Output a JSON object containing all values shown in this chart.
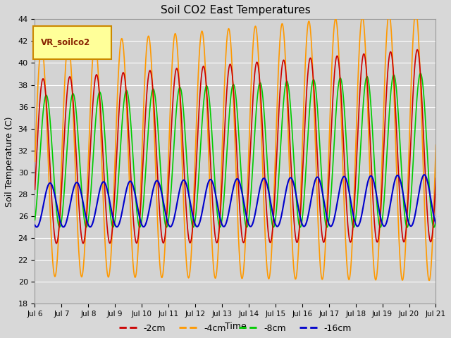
{
  "title": "Soil CO2 East Temperatures",
  "ylabel": "Soil Temperature (C)",
  "xlabel": "Time",
  "ylim": [
    18,
    44
  ],
  "xlim_days": [
    6,
    21
  ],
  "tick_labels": [
    "Jul 6",
    "Jul 7",
    "Jul 8",
    "Jul 9",
    "Jul 10",
    "Jul 11",
    "Jul 12",
    "Jul 13",
    "Jul 14",
    "Jul 15",
    "Jul 16",
    "Jul 17",
    "Jul 18",
    "Jul 19",
    "Jul 20",
    "Jul 21"
  ],
  "yticks": [
    18,
    20,
    22,
    24,
    26,
    28,
    30,
    32,
    34,
    36,
    38,
    40,
    42,
    44
  ],
  "colors": {
    "-2cm": "#cc0000",
    "-4cm": "#ff9900",
    "-8cm": "#00cc00",
    "-16cm": "#0000cc"
  },
  "legend_label": "VR_soilco2",
  "fig_bg_color": "#d8d8d8",
  "plot_bg_color": "#d3d3d3",
  "grid_color": "#ffffff",
  "period": 1.0,
  "mean_base": 31.0,
  "amp_4cm": 10.5,
  "amp_2cm": 7.5,
  "amp_8cm": 6.0,
  "amp_16cm": 2.0,
  "mean_16cm": 27.0,
  "phase_4cm": 0.0,
  "phase_2cm": 0.35,
  "phase_8cm": 1.1,
  "phase_16cm": 2.0,
  "amp_growth": 0.012,
  "mean_growth": 0.1
}
